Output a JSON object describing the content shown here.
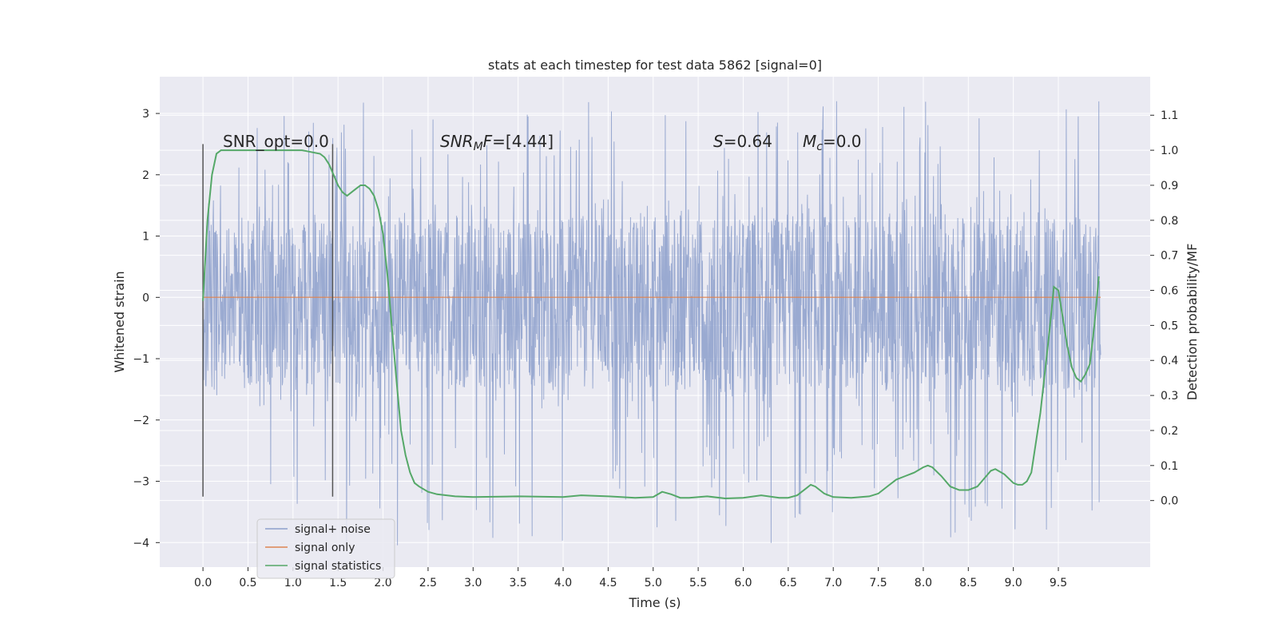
{
  "chart_data": {
    "type": "line",
    "title": "stats at each timestep for test data 5862 [signal=0]",
    "xlabel": "Time (s)",
    "ylabel": "Whitened strain",
    "ylabel_right": "Detection probability/MF",
    "xlim": [
      -0.48,
      10.52
    ],
    "ylim": [
      -4.4,
      3.6
    ],
    "ylim_right": [
      -0.19,
      1.21
    ],
    "x_ticks": [
      "0.0",
      "0.5",
      "1.0",
      "1.5",
      "2.0",
      "2.5",
      "3.0",
      "3.5",
      "4.0",
      "4.5",
      "5.0",
      "5.5",
      "6.0",
      "6.5",
      "7.0",
      "7.5",
      "8.0",
      "8.5",
      "9.0",
      "9.5"
    ],
    "y_ticks": [
      "−4",
      "−3",
      "−2",
      "−1",
      "0",
      "1",
      "2",
      "3"
    ],
    "y_right_ticks": [
      "0.0",
      "0.1",
      "0.2",
      "0.3",
      "0.4",
      "0.5",
      "0.6",
      "0.7",
      "0.8",
      "0.9",
      "1.0",
      "1.1"
    ],
    "grid": true,
    "legend_position": "lower-left",
    "colors": {
      "noise": "#8c9fcb",
      "signal": "#dd8452",
      "stats": "#55a868",
      "background": "#eaeaf2",
      "vline": "#555555"
    },
    "annotations": {
      "snr_opt": "SNR_opt=0.0",
      "snr_mf_prefix": "SNR",
      "snr_mf_sub": "M",
      "snr_mf_mid": "F",
      "snr_mf_suffix": "=[4.44]",
      "s_label": "S",
      "s_value": "=0.64",
      "mc_label": "M",
      "mc_sub": "c",
      "mc_value": "=0.0"
    },
    "vertical_lines": [
      0.0,
      1.44
    ],
    "noise": {
      "x_range": [
        0.0,
        9.97
      ],
      "band": [
        -1.5,
        1.3
      ],
      "peak_high": 3.2,
      "peak_low": -4.1
    },
    "series": [
      {
        "name": "signal+ noise",
        "kind": "noise"
      },
      {
        "name": "signal only",
        "kind": "line",
        "x": [
          0.0,
          9.97
        ],
        "y": [
          0.0,
          0.0
        ]
      },
      {
        "name": "signal statistics",
        "kind": "line",
        "axis": "right",
        "x": [
          0.0,
          0.05,
          0.1,
          0.15,
          0.2,
          0.3,
          0.5,
          0.7,
          0.9,
          1.1,
          1.2,
          1.3,
          1.35,
          1.4,
          1.45,
          1.5,
          1.55,
          1.6,
          1.65,
          1.7,
          1.75,
          1.8,
          1.85,
          1.9,
          1.95,
          2.0,
          2.05,
          2.1,
          2.15,
          2.2,
          2.25,
          2.3,
          2.35,
          2.4,
          2.5,
          2.6,
          2.8,
          3.0,
          3.5,
          4.0,
          4.2,
          4.5,
          4.8,
          5.0,
          5.1,
          5.2,
          5.3,
          5.4,
          5.6,
          5.8,
          6.0,
          6.2,
          6.4,
          6.5,
          6.6,
          6.7,
          6.75,
          6.8,
          6.9,
          7.0,
          7.2,
          7.4,
          7.5,
          7.6,
          7.7,
          7.8,
          7.9,
          8.0,
          8.05,
          8.1,
          8.2,
          8.3,
          8.4,
          8.5,
          8.6,
          8.7,
          8.75,
          8.8,
          8.9,
          9.0,
          9.05,
          9.1,
          9.15,
          9.2,
          9.3,
          9.4,
          9.45,
          9.5,
          9.55,
          9.6,
          9.65,
          9.7,
          9.75,
          9.8,
          9.85,
          9.9,
          9.95
        ],
        "y": [
          0.57,
          0.8,
          0.93,
          0.99,
          1.0,
          1.0,
          1.0,
          1.0,
          1.0,
          1.0,
          0.995,
          0.99,
          0.98,
          0.96,
          0.93,
          0.9,
          0.88,
          0.87,
          0.88,
          0.89,
          0.9,
          0.9,
          0.89,
          0.87,
          0.83,
          0.76,
          0.64,
          0.49,
          0.34,
          0.2,
          0.13,
          0.08,
          0.05,
          0.04,
          0.025,
          0.018,
          0.012,
          0.01,
          0.012,
          0.01,
          0.015,
          0.012,
          0.008,
          0.01,
          0.025,
          0.018,
          0.008,
          0.008,
          0.012,
          0.006,
          0.008,
          0.015,
          0.008,
          0.008,
          0.015,
          0.035,
          0.045,
          0.04,
          0.02,
          0.01,
          0.008,
          0.012,
          0.02,
          0.04,
          0.06,
          0.07,
          0.08,
          0.095,
          0.1,
          0.095,
          0.07,
          0.04,
          0.03,
          0.03,
          0.04,
          0.07,
          0.085,
          0.09,
          0.075,
          0.05,
          0.045,
          0.045,
          0.055,
          0.08,
          0.25,
          0.48,
          0.61,
          0.6,
          0.52,
          0.44,
          0.38,
          0.35,
          0.34,
          0.36,
          0.39,
          0.5,
          0.64
        ]
      }
    ]
  }
}
